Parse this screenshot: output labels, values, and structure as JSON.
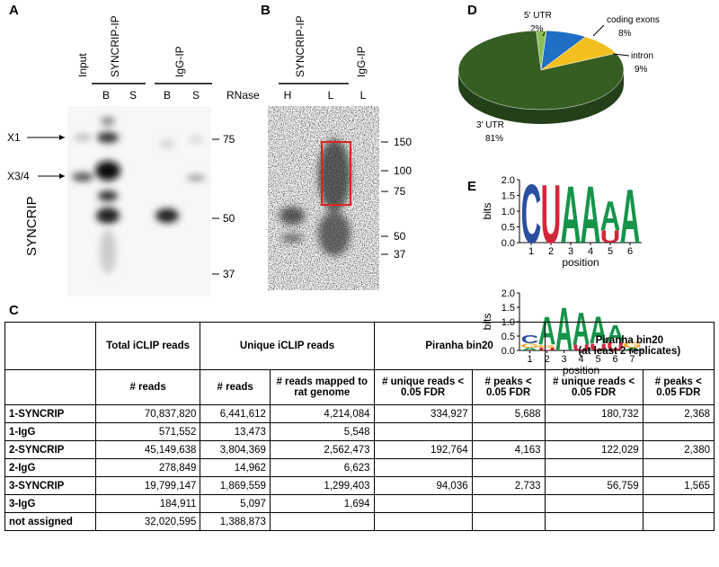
{
  "panel_a": {
    "label": "A",
    "lanes": [
      "Input",
      "SYNCRIP-IP",
      "IgG-IP"
    ],
    "sublanes": [
      "B",
      "S",
      "B",
      "S"
    ],
    "markers": [
      "X1",
      "X3/4"
    ],
    "row_label": "SYNCRIP",
    "mw": [
      "75",
      "50",
      "37"
    ]
  },
  "panel_b": {
    "label": "B",
    "treatment": "RNase",
    "lanes": [
      "SYNCRIP-IP",
      "IgG-IP"
    ],
    "sublanes": [
      "H",
      "L",
      "L"
    ],
    "mw": [
      "150",
      "100",
      "75",
      "50",
      "37"
    ]
  },
  "panel_c": {
    "label": "C",
    "header1": [
      "Total iCLIP reads",
      "Unique iCLIP reads",
      "Piranha bin20",
      [
        "Piranha bin20",
        "(at least 2 replicates)"
      ]
    ],
    "header2": [
      "# reads",
      "# reads",
      "# reads mapped to rat genome",
      "# unique reads < 0.05 FDR",
      "# peaks < 0.05 FDR",
      "# unique reads < 0.05 FDR",
      "# peaks < 0.05 FDR"
    ],
    "rows": [
      [
        "1-SYNCRIP",
        "70,837,820",
        "6,441,612",
        "4,214,084",
        "334,927",
        "5,688",
        "180,732",
        "2,368"
      ],
      [
        "1-IgG",
        "571,552",
        "13,473",
        "5,548"
      ],
      [
        "2-SYNCRIP",
        "45,149,638",
        "3,804,369",
        "2,562,473",
        "192,764",
        "4,163",
        "122,029",
        "2,380"
      ],
      [
        "2-IgG",
        "278,849",
        "14,962",
        "6,623"
      ],
      [
        "3-SYNCRIP",
        "19,799,147",
        "1,869,559",
        "1,299,403",
        "94,036",
        "2,733",
        "56,759",
        "1,565"
      ],
      [
        "3-IgG",
        "184,911",
        "5,097",
        "1,694"
      ],
      [
        "not assigned",
        "32,020,595",
        "1,388,873"
      ]
    ]
  },
  "panel_d": {
    "label": "D",
    "type": "pie",
    "categories": [
      "5' UTR",
      "coding exons",
      "intron",
      "3' UTR"
    ],
    "values": [
      2,
      8,
      9,
      81
    ],
    "value_labels": [
      "2%",
      "8%",
      "9%",
      "81%"
    ],
    "colors": [
      "#8cbf56",
      "#1f6fc5",
      "#f2bf1e",
      "#365e22"
    ]
  },
  "panel_e": {
    "label": "E",
    "colors": {
      "A": "#15944a",
      "C": "#2a4fa0",
      "G": "#f1a520",
      "U": "#d3263a"
    },
    "logos": [
      {
        "ylabel": "bits",
        "xlabel": "position",
        "ylim": [
          0,
          2
        ],
        "yticks": [
          {
            "value": 0,
            "label": "0.0"
          },
          {
            "value": 0.5,
            "label": "0.5"
          },
          {
            "value": 1,
            "label": "1.0"
          },
          {
            "value": 1.5,
            "label": "1.5"
          },
          {
            "value": 2,
            "label": "2.0"
          }
        ],
        "xticks": [
          1,
          2,
          3,
          4,
          5,
          6
        ],
        "stacks": [
          [
            {
              "letter": "C",
              "bits": 1.9
            }
          ],
          [
            {
              "letter": "U",
              "bits": 1.9
            }
          ],
          [
            {
              "letter": "A",
              "bits": 1.85
            }
          ],
          [
            {
              "letter": "A",
              "bits": 1.85
            }
          ],
          [
            {
              "letter": "U",
              "bits": 0.4
            },
            {
              "letter": "A",
              "bits": 0.95
            }
          ],
          [
            {
              "letter": "A",
              "bits": 1.75
            }
          ]
        ]
      },
      {
        "ylabel": "bits",
        "xlabel": "position",
        "ylim": [
          0,
          2
        ],
        "yticks": [
          {
            "value": 0,
            "label": "0.0"
          },
          {
            "value": 0.5,
            "label": "0.5"
          },
          {
            "value": 1,
            "label": "1.0"
          },
          {
            "value": 1.5,
            "label": "1.5"
          },
          {
            "value": 2,
            "label": "2.0"
          }
        ],
        "xticks": [
          1,
          2,
          3,
          4,
          5,
          6,
          7
        ],
        "stacks": [
          [
            {
              "letter": "A",
              "bits": 0.1
            },
            {
              "letter": "G",
              "bits": 0.15
            },
            {
              "letter": "C",
              "bits": 0.3
            }
          ],
          [
            {
              "letter": "U",
              "bits": 0.1
            },
            {
              "letter": "G",
              "bits": 0.1
            },
            {
              "letter": "A",
              "bits": 1.0
            }
          ],
          [
            {
              "letter": "A",
              "bits": 1.55
            }
          ],
          [
            {
              "letter": "U",
              "bits": 0.2
            },
            {
              "letter": "A",
              "bits": 1.15
            }
          ],
          [
            {
              "letter": "U",
              "bits": 0.25
            },
            {
              "letter": "A",
              "bits": 0.95
            }
          ],
          [
            {
              "letter": "U",
              "bits": 0.3
            },
            {
              "letter": "A",
              "bits": 0.6
            }
          ],
          [
            {
              "letter": "A",
              "bits": 0.1
            },
            {
              "letter": "G",
              "bits": 0.2
            }
          ]
        ]
      }
    ]
  }
}
